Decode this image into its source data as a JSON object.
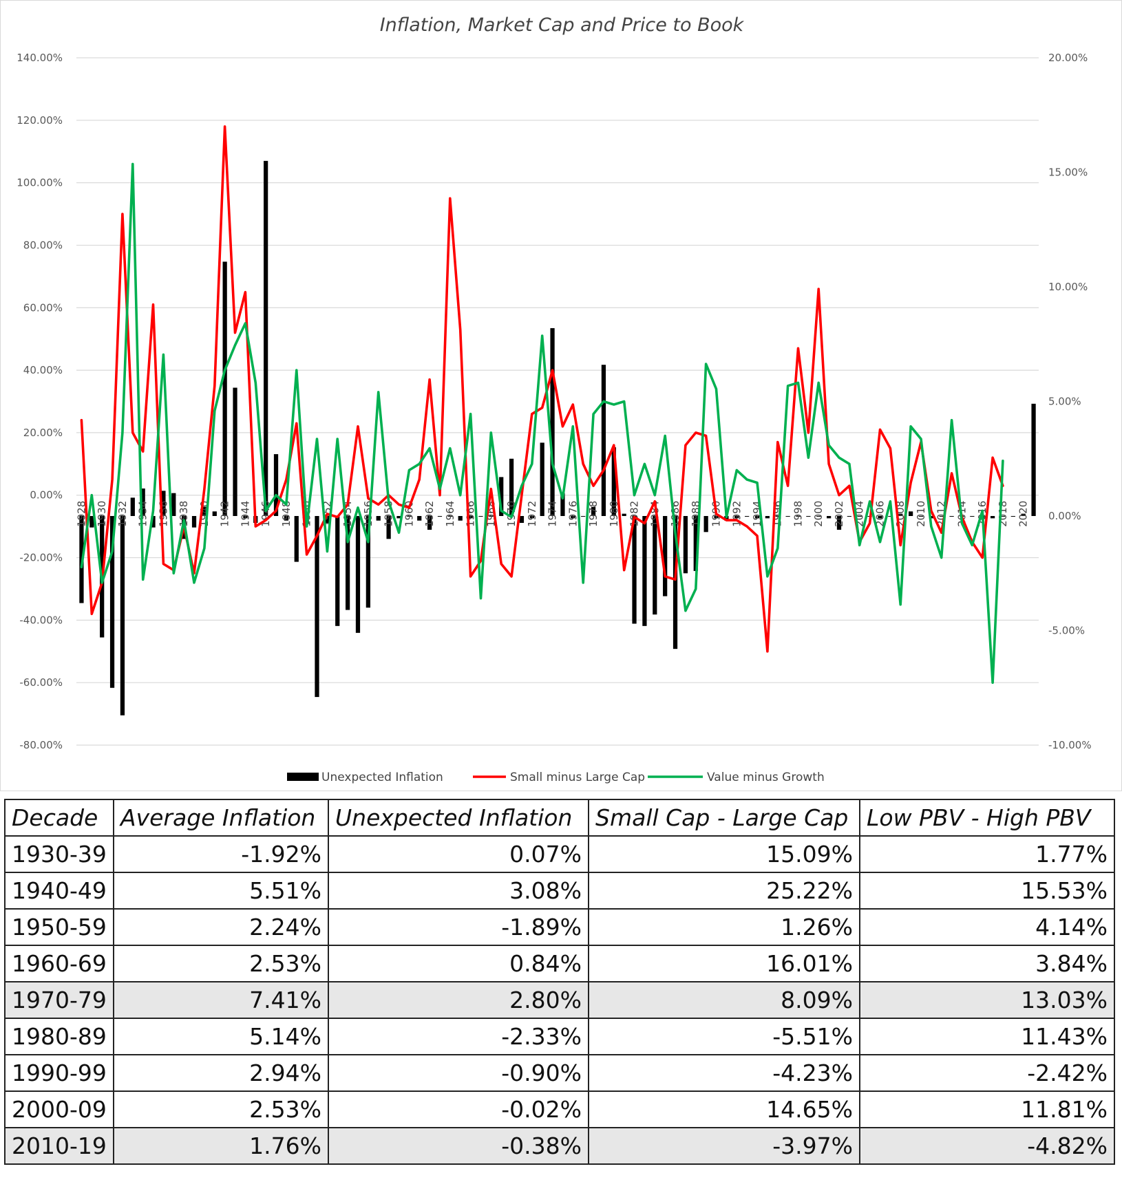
{
  "chart_data": {
    "type": "bar+line",
    "title": "Inflation, Market Cap and Price to Book",
    "left_axis": {
      "min": -0.8,
      "max": 1.4,
      "step": 0.2,
      "tick_labels": [
        "-80.00%",
        "-60.00%",
        "-40.00%",
        "-20.00%",
        "0.00%",
        "20.00%",
        "40.00%",
        "60.00%",
        "80.00%",
        "100.00%",
        "120.00%",
        "140.00%"
      ]
    },
    "right_axis": {
      "min": -0.1,
      "max": 0.2,
      "step": 0.05,
      "tick_labels": [
        "-10.00%",
        "-5.00%",
        "0.00%",
        "5.00%",
        "10.00%",
        "15.00%",
        "20.00%"
      ]
    },
    "x_tick_labels": [
      "1928",
      "1930",
      "1932",
      "1934",
      "1936",
      "1938",
      "1940",
      "1942",
      "1944",
      "1946",
      "1948",
      "1950",
      "1952",
      "1954",
      "1956",
      "1958",
      "1960",
      "1962",
      "1964",
      "1966",
      "1968",
      "1970",
      "1972",
      "1974",
      "1976",
      "1978",
      "1980",
      "1982",
      "1984",
      "1986",
      "1988",
      "1990",
      "1992",
      "1994",
      "1996",
      "1998",
      "2000",
      "2002",
      "2004",
      "2006",
      "2008",
      "2010",
      "2012",
      "2014",
      "2016",
      "2018",
      "2020"
    ],
    "grid": "horizontal",
    "legend_position": "bottom",
    "x_start": 1928,
    "x_end": 2021,
    "series": [
      {
        "name": "Unexpected Inflation",
        "type": "bar",
        "axis": "right",
        "color": "#000000",
        "values": [
          -0.038,
          -0.005,
          -0.053,
          -0.075,
          -0.087,
          0.008,
          0.012,
          -0.005,
          0.011,
          0.01,
          -0.01,
          -0.005,
          0.004,
          0.002,
          0.111,
          0.056,
          -0.001,
          -0.003,
          0.155,
          0.027,
          -0.002,
          -0.02,
          -0.003,
          -0.079,
          -0.003,
          -0.048,
          -0.041,
          -0.051,
          -0.04,
          -0.002,
          -0.01,
          -0.001,
          0.0,
          -0.002,
          -0.006,
          0.0,
          0.0,
          -0.002,
          -0.001,
          0.0,
          0.0,
          0.017,
          0.025,
          -0.003,
          -0.001,
          0.032,
          0.082,
          0.01,
          -0.001,
          0.0,
          0.004,
          0.066,
          0.03,
          0.001,
          -0.047,
          -0.048,
          -0.043,
          -0.035,
          -0.058,
          -0.025,
          -0.024,
          -0.007,
          -0.001,
          -0.002,
          -0.001,
          0.0,
          -0.001,
          -0.001,
          0.0,
          0.0,
          0.0,
          0.0,
          0.0,
          -0.001,
          -0.006,
          0.0,
          0.0,
          0.0,
          -0.001,
          0.0,
          0.001,
          0.002,
          0.0,
          -0.001,
          0.0,
          0.0,
          0.0,
          0.0,
          -0.001,
          -0.001,
          0.0,
          0.0,
          0.001,
          0.049
        ]
      },
      {
        "name": "Small minus Large Cap",
        "type": "line",
        "axis": "left",
        "color": "#ff0000",
        "values": [
          0.24,
          -0.38,
          -0.28,
          0.05,
          0.9,
          0.2,
          0.14,
          0.61,
          -0.22,
          -0.24,
          -0.1,
          -0.25,
          0.02,
          0.35,
          1.18,
          0.52,
          0.65,
          -0.1,
          -0.08,
          -0.05,
          0.05,
          0.23,
          -0.19,
          -0.13,
          -0.06,
          -0.07,
          -0.03,
          0.22,
          -0.01,
          -0.03,
          0.0,
          -0.03,
          -0.04,
          0.05,
          0.37,
          0.0,
          0.95,
          0.53,
          -0.26,
          -0.21,
          0.02,
          -0.22,
          -0.26,
          0.0,
          0.26,
          0.28,
          0.4,
          0.22,
          0.29,
          0.1,
          0.03,
          0.08,
          0.16,
          -0.24,
          -0.07,
          -0.09,
          -0.02,
          -0.26,
          -0.27,
          0.16,
          0.2,
          0.19,
          -0.06,
          -0.08,
          -0.08,
          -0.1,
          -0.13,
          -0.5,
          0.17,
          0.03,
          0.47,
          0.2,
          0.66,
          0.1,
          0.0,
          0.03,
          -0.15,
          -0.09,
          0.21,
          0.15,
          -0.16,
          0.04,
          0.17,
          -0.05,
          -0.12,
          0.07,
          -0.07,
          -0.15,
          -0.2,
          0.12,
          0.03
        ]
      },
      {
        "name": "Value minus Growth",
        "type": "line",
        "axis": "left",
        "color": "#00b050",
        "values": [
          -0.23,
          0.0,
          -0.28,
          -0.18,
          0.2,
          1.06,
          -0.27,
          -0.05,
          0.45,
          -0.25,
          -0.08,
          -0.28,
          -0.17,
          0.27,
          0.4,
          0.48,
          0.55,
          0.36,
          -0.05,
          0.0,
          -0.03,
          0.4,
          -0.1,
          0.18,
          -0.18,
          0.18,
          -0.15,
          -0.04,
          -0.15,
          0.33,
          -0.02,
          -0.12,
          0.08,
          0.1,
          0.15,
          0.02,
          0.15,
          0.0,
          0.26,
          -0.33,
          0.2,
          -0.05,
          -0.07,
          0.03,
          0.1,
          0.51,
          0.1,
          -0.01,
          0.22,
          -0.28,
          0.26,
          0.3,
          0.29,
          0.3,
          0.0,
          0.1,
          0.0,
          0.19,
          -0.12,
          -0.37,
          -0.3,
          0.42,
          0.34,
          -0.07,
          0.08,
          0.05,
          0.04,
          -0.26,
          -0.17,
          0.35,
          0.36,
          0.12,
          0.36,
          0.16,
          0.12,
          0.1,
          -0.16,
          -0.02,
          -0.15,
          -0.02,
          -0.35,
          0.22,
          0.18,
          -0.1,
          -0.2,
          0.24,
          -0.09,
          -0.16,
          -0.05,
          -0.6,
          0.11
        ]
      }
    ]
  },
  "table": {
    "headers": [
      "Decade",
      "Average Inflation",
      "Unexpected Inflation",
      "Small Cap - Large Cap",
      "Low PBV - High PBV"
    ],
    "rows": [
      {
        "cells": [
          "1930-39",
          "-1.92%",
          "0.07%",
          "15.09%",
          "1.77%"
        ],
        "shaded": false
      },
      {
        "cells": [
          "1940-49",
          "5.51%",
          "3.08%",
          "25.22%",
          "15.53%"
        ],
        "shaded": false
      },
      {
        "cells": [
          "1950-59",
          "2.24%",
          "-1.89%",
          "1.26%",
          "4.14%"
        ],
        "shaded": false
      },
      {
        "cells": [
          "1960-69",
          "2.53%",
          "0.84%",
          "16.01%",
          "3.84%"
        ],
        "shaded": false
      },
      {
        "cells": [
          "1970-79",
          "7.41%",
          "2.80%",
          "8.09%",
          "13.03%"
        ],
        "shaded": true
      },
      {
        "cells": [
          "1980-89",
          "5.14%",
          "-2.33%",
          "-5.51%",
          "11.43%"
        ],
        "shaded": false
      },
      {
        "cells": [
          "1990-99",
          "2.94%",
          "-0.90%",
          "-4.23%",
          "-2.42%"
        ],
        "shaded": false
      },
      {
        "cells": [
          "2000-09",
          "2.53%",
          "-0.02%",
          "14.65%",
          "11.81%"
        ],
        "shaded": false
      },
      {
        "cells": [
          "2010-19",
          "1.76%",
          "-0.38%",
          "-3.97%",
          "-4.82%"
        ],
        "shaded": true
      }
    ]
  }
}
